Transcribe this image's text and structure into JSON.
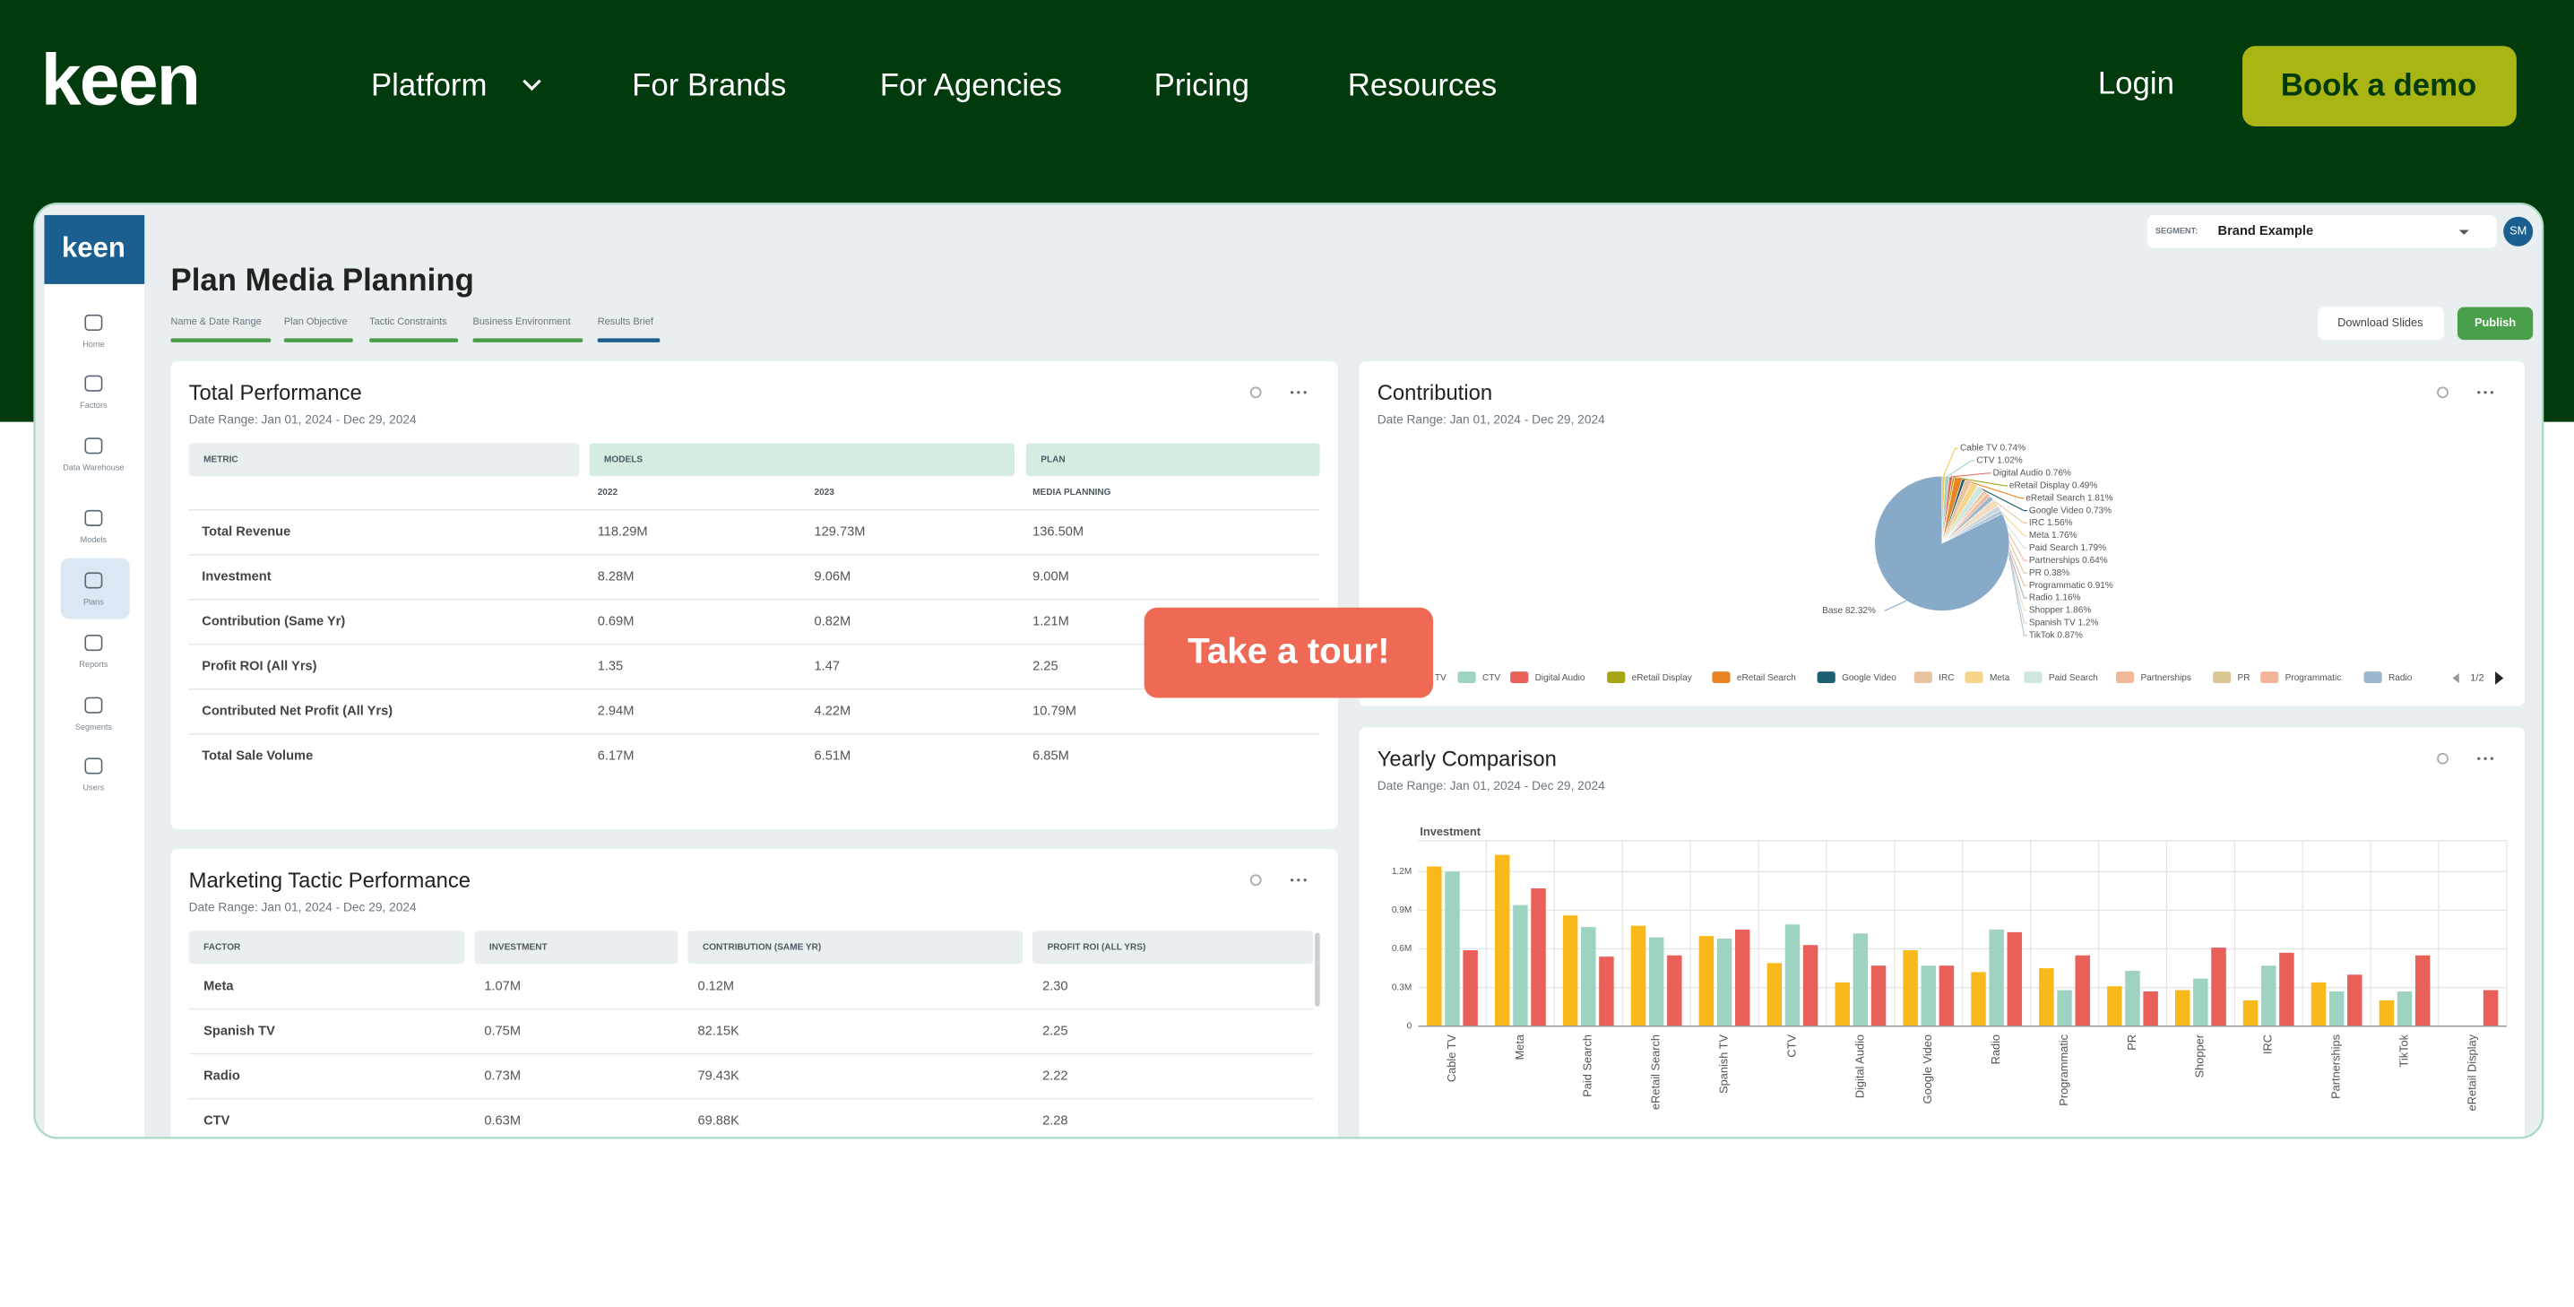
{
  "nav": {
    "logo": "keen",
    "items": [
      "Platform",
      "For Brands",
      "For Agencies",
      "Pricing",
      "Resources"
    ],
    "login": "Login",
    "cta": "Book a demo"
  },
  "app": {
    "logo": "keen",
    "sidebar": [
      "Home",
      "Factors",
      "Data Warehouse",
      "Models",
      "Plans",
      "Reports",
      "Segments",
      "Users"
    ],
    "segment": {
      "label": "SEGMENT:",
      "value": "Brand Example"
    },
    "avatar": "SM",
    "page_title": "Plan Media Planning",
    "steps": [
      "Name & Date Range",
      "Plan Objective",
      "Tactic Constraints",
      "Business Environment",
      "Results Brief"
    ],
    "buttons": [
      "Download Slides",
      "Publish"
    ],
    "tour": "Take a tour!"
  },
  "total_performance": {
    "title": "Total Performance",
    "date_range": "Date Range: Jan 01, 2024 - Dec 29, 2024",
    "groups": [
      "METRIC",
      "MODELS",
      "PLAN"
    ],
    "columns": [
      "2022",
      "2023",
      "MEDIA PLANNING"
    ],
    "rows": [
      [
        "Total Revenue",
        "118.29M",
        "129.73M",
        "136.50M"
      ],
      [
        "Investment",
        "8.28M",
        "9.06M",
        "9.00M"
      ],
      [
        "Contribution (Same Yr)",
        "0.69M",
        "0.82M",
        "1.21M"
      ],
      [
        "Profit ROI (All Yrs)",
        "1.35",
        "1.47",
        "2.25"
      ],
      [
        "Contributed Net Profit (All Yrs)",
        "2.94M",
        "4.22M",
        "10.79M"
      ],
      [
        "Total Sale Volume",
        "6.17M",
        "6.51M",
        "6.85M"
      ]
    ]
  },
  "marketing": {
    "title": "Marketing Tactic Performance",
    "date_range": "Date Range: Jan 01, 2024 - Dec 29, 2024",
    "columns": [
      "FACTOR",
      "INVESTMENT",
      "CONTRIBUTION (SAME YR)",
      "PROFIT ROI (ALL YRS)"
    ],
    "rows": [
      [
        "Meta",
        "1.07M",
        "0.12M",
        "2.30"
      ],
      [
        "Spanish TV",
        "0.75M",
        "82.15K",
        "2.25"
      ],
      [
        "Radio",
        "0.73M",
        "79.43K",
        "2.22"
      ],
      [
        "CTV",
        "0.63M",
        "69.88K",
        "2.28"
      ]
    ]
  },
  "contribution": {
    "title": "Contribution",
    "date_range": "Date Range: Jan 01, 2024 - Dec 29, 2024",
    "chart_data": {
      "type": "pie",
      "values": [
        0.74,
        1.02,
        0.76,
        0.49,
        1.81,
        0.73,
        1.56,
        1.76,
        1.79,
        0.64,
        0.38,
        0.91,
        1.16,
        1.86,
        1.2,
        0.87,
        82.32
      ],
      "value_labels": [
        "Cable TV 0.74%",
        "CTV 1.02%",
        "Digital Audio 0.76%",
        "eRetail Display 0.49%",
        "eRetail Search 1.81%",
        "Google Video 0.73%",
        "IRC 1.56%",
        "Meta 1.76%",
        "Paid Search 1.79%",
        "Partnerships 0.64%",
        "PR 0.38%",
        "Programmatic 0.91%",
        "Radio 1.16%",
        "Shopper 1.86%",
        "Spanish TV 1.2%",
        "TikTok 0.87%",
        "Base 82.32%"
      ],
      "colors": [
        "#f9c74f",
        "#9fd3c1",
        "#e9605a",
        "#a8a514",
        "#e88424",
        "#1e5f74",
        "#e8c3a0",
        "#f6d58a",
        "#cfe8df",
        "#f1b99a",
        "#d9c896",
        "#f2b59a",
        "#9ab7cc",
        "#f4dcc0",
        "#c9d7e0",
        "#b0c4d4",
        "#88aac9"
      ]
    },
    "legend": {
      "items": [
        "TV",
        "CTV",
        "Digital Audio",
        "eRetail Display",
        "eRetail Search",
        "Google Video",
        "IRC",
        "Meta",
        "Paid Search",
        "Partnerships",
        "PR",
        "Programmatic",
        "Radio"
      ],
      "colors": [
        "#f9c74f",
        "#9fd3c1",
        "#e9605a",
        "#a8a514",
        "#e88424",
        "#1e5f74",
        "#e8c3a0",
        "#f6d58a",
        "#cfe8df",
        "#f1b99a",
        "#d9c896",
        "#f2b59a",
        "#9ab7cc"
      ],
      "page": "1/2"
    }
  },
  "yearly": {
    "title": "Yearly Comparison",
    "date_range": "Date Range: Jan 01, 2024 - Dec 29, 2024",
    "chart_data": {
      "type": "bar",
      "ylabel": "Investment",
      "categories": [
        "Cable TV",
        "Meta",
        "Paid Search",
        "eRetail Search",
        "Spanish TV",
        "CTV",
        "Digital Audio",
        "Google Video",
        "Radio",
        "Programmatic",
        "PR",
        "Shopper",
        "IRC",
        "Partnerships",
        "TikTok",
        "eRetail Display"
      ],
      "series": [
        {
          "color": "#f9b91b",
          "values": [
            1.24,
            1.33,
            0.86,
            0.78,
            0.7,
            0.49,
            0.34,
            0.59,
            0.42,
            0.45,
            0.31,
            0.28,
            0.2,
            0.34,
            0.2,
            0
          ]
        },
        {
          "color": "#9fd3c1",
          "values": [
            1.2,
            0.94,
            0.77,
            0.69,
            0.68,
            0.79,
            0.72,
            0.47,
            0.75,
            0.28,
            0.43,
            0.37,
            0.47,
            0.27,
            0.27,
            0
          ]
        },
        {
          "color": "#e9605a",
          "values": [
            0.59,
            1.07,
            0.54,
            0.55,
            0.75,
            0.63,
            0.47,
            0.47,
            0.73,
            0.55,
            0.27,
            0.61,
            0.57,
            0.4,
            0.55,
            0.28
          ]
        }
      ],
      "ylim": [
        0,
        1.44
      ],
      "yticks": [
        0,
        {
          "value": 0.3,
          "label": "0.3M"
        },
        {
          "value": 0.6,
          "label": "0.6M"
        },
        {
          "value": 0.9,
          "label": "0.9M"
        },
        {
          "value": 1.2,
          "label": "1.2M"
        }
      ],
      "grid": true
    }
  }
}
